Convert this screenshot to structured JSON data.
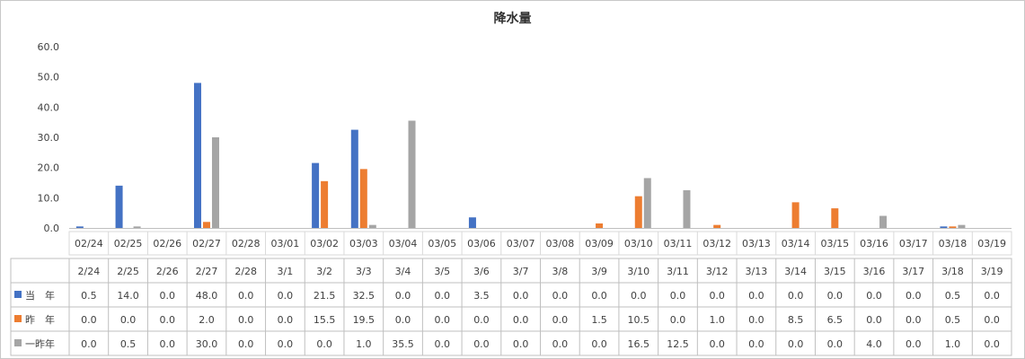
{
  "chart_data": {
    "type": "bar",
    "title": "降水量",
    "xlabel": "",
    "ylabel": "",
    "ylim": [
      0,
      60
    ],
    "y_ticks": [
      "0.0",
      "10.0",
      "20.0",
      "30.0",
      "40.0",
      "50.0",
      "60.0"
    ],
    "grid": false,
    "legend": "table-left",
    "categories": [
      "02/24",
      "02/25",
      "02/26",
      "02/27",
      "02/28",
      "03/01",
      "03/02",
      "03/03",
      "03/04",
      "03/05",
      "03/06",
      "03/07",
      "03/08",
      "03/09",
      "03/10",
      "03/11",
      "03/12",
      "03/13",
      "03/14",
      "03/15",
      "03/16",
      "03/17",
      "03/18",
      "03/19"
    ],
    "table_headers": [
      "2/24",
      "2/25",
      "2/26",
      "2/27",
      "2/28",
      "3/1",
      "3/2",
      "3/3",
      "3/4",
      "3/5",
      "3/6",
      "3/7",
      "3/8",
      "3/9",
      "3/10",
      "3/11",
      "3/12",
      "3/13",
      "3/14",
      "3/15",
      "3/16",
      "3/17",
      "3/18",
      "3/19"
    ],
    "series": [
      {
        "name": "当　年",
        "color": "#4472c4",
        "values": [
          0.5,
          14.0,
          0.0,
          48.0,
          0.0,
          0.0,
          21.5,
          32.5,
          0.0,
          0.0,
          3.5,
          0.0,
          0.0,
          0.0,
          0.0,
          0.0,
          0.0,
          0.0,
          0.0,
          0.0,
          0.0,
          0.0,
          0.5,
          0.0
        ],
        "labels": [
          "0.5",
          "14.0",
          "0.0",
          "48.0",
          "0.0",
          "0.0",
          "21.5",
          "32.5",
          "0.0",
          "0.0",
          "3.5",
          "0.0",
          "0.0",
          "0.0",
          "0.0",
          "0.0",
          "0.0",
          "0.0",
          "0.0",
          "0.0",
          "0.0",
          "0.0",
          "0.5",
          "0.0"
        ]
      },
      {
        "name": "昨　年",
        "color": "#ed7d31",
        "values": [
          0.0,
          0.0,
          0.0,
          2.0,
          0.0,
          0.0,
          15.5,
          19.5,
          0.0,
          0.0,
          0.0,
          0.0,
          0.0,
          1.5,
          10.5,
          0.0,
          1.0,
          0.0,
          8.5,
          6.5,
          0.0,
          0.0,
          0.5,
          0.0
        ],
        "labels": [
          "0.0",
          "0.0",
          "0.0",
          "2.0",
          "0.0",
          "0.0",
          "15.5",
          "19.5",
          "0.0",
          "0.0",
          "0.0",
          "0.0",
          "0.0",
          "1.5",
          "10.5",
          "0.0",
          "1.0",
          "0.0",
          "8.5",
          "6.5",
          "0.0",
          "0.0",
          "0.5",
          "0.0"
        ]
      },
      {
        "name": "一昨年",
        "color": "#a5a5a5",
        "values": [
          0.0,
          0.5,
          0.0,
          30.0,
          0.0,
          0.0,
          0.0,
          1.0,
          35.5,
          0.0,
          0.0,
          0.0,
          0.0,
          0.0,
          16.5,
          12.5,
          0.0,
          0.0,
          0.0,
          0.0,
          4.0,
          0.0,
          1.0,
          0.0
        ],
        "labels": [
          "0.0",
          "0.5",
          "0.0",
          "30.0",
          "0.0",
          "0.0",
          "0.0",
          "1.0",
          "35.5",
          "0.0",
          "0.0",
          "0.0",
          "0.0",
          "0.0",
          "16.5",
          "12.5",
          "0.0",
          "0.0",
          "0.0",
          "0.0",
          "4.0",
          "0.0",
          "1.0",
          "0.0"
        ]
      }
    ]
  }
}
